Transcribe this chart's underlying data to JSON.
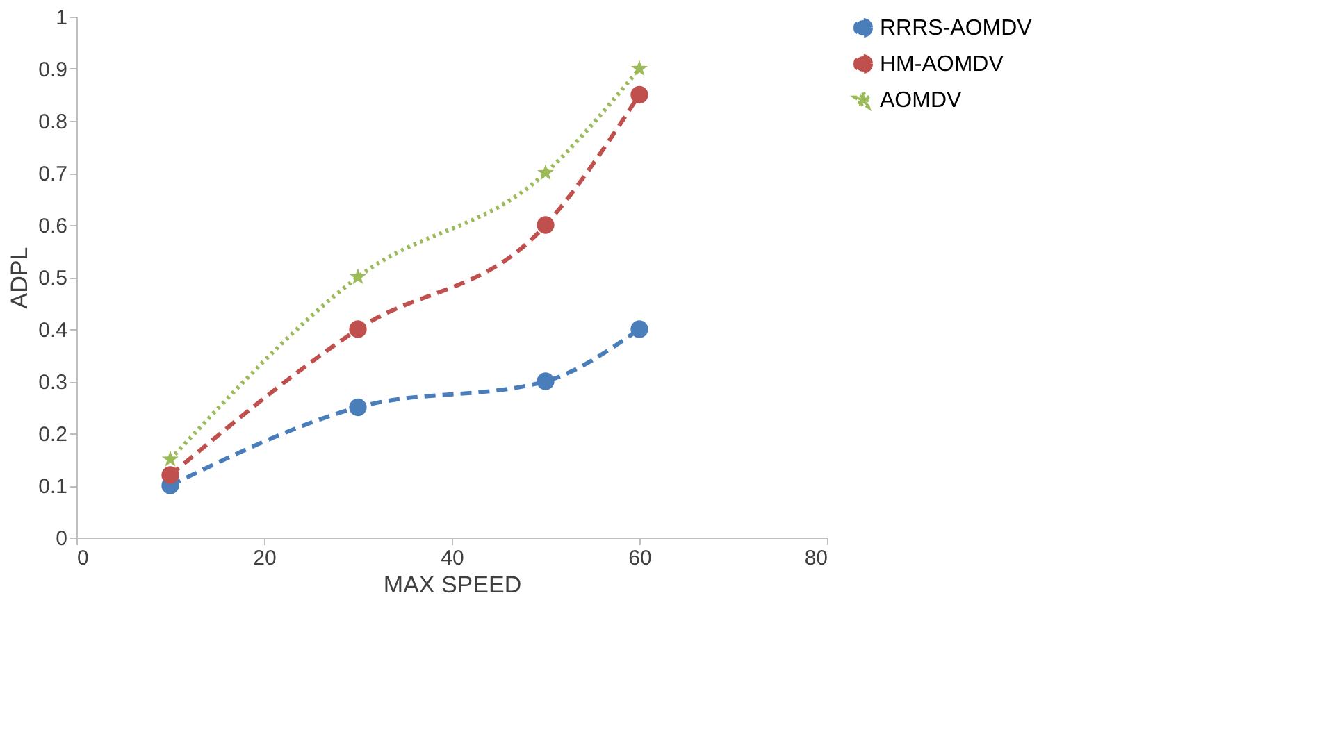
{
  "chart_data": {
    "type": "line",
    "xlabel": "MAX SPEED",
    "ylabel": "ADPL",
    "x": [
      10,
      30,
      50,
      60
    ],
    "series": [
      {
        "name": "RRRS-AOMDV",
        "color": "#4a7ebb",
        "values": [
          0.1,
          0.25,
          0.3,
          0.4
        ],
        "marker": "circle",
        "line_style": "dashed"
      },
      {
        "name": "HM-AOMDV",
        "color": "#c0504d",
        "values": [
          0.12,
          0.4,
          0.6,
          0.85
        ],
        "marker": "circle",
        "line_style": "dashed"
      },
      {
        "name": "AOMDV",
        "color": "#9bbb59",
        "values": [
          0.15,
          0.5,
          0.7,
          0.9
        ],
        "marker": "star",
        "line_style": "dotted"
      }
    ],
    "xlim": [
      0,
      80
    ],
    "xticks": [
      0,
      20,
      40,
      60,
      80
    ],
    "ylim": [
      0,
      1
    ],
    "yticks": [
      0,
      0.1,
      0.2,
      0.3,
      0.4,
      0.5,
      0.6,
      0.7,
      0.8,
      0.9,
      1
    ],
    "grid": false,
    "legend": "right"
  }
}
